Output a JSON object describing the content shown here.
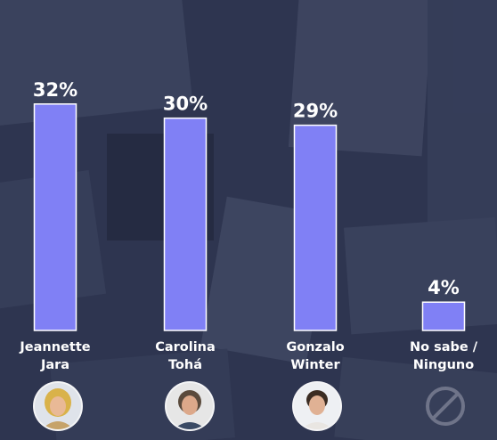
{
  "chart_data": {
    "type": "bar",
    "categories": [
      "Jeannette\nJara",
      "Carolina\nTohá",
      "Gonzalo\nWinter",
      "No sabe /\nNinguno"
    ],
    "values": [
      32,
      30,
      29,
      4
    ],
    "value_labels": [
      "32%",
      "30%",
      "29%",
      "4%"
    ],
    "unit": "%",
    "ylim": [
      0,
      36
    ],
    "grid": false,
    "legend": "none",
    "bar_color": "#8080f5",
    "background_color": "#2f3652",
    "label_color": "#ffffff"
  },
  "avatars": [
    {
      "icon": "candidate-photo"
    },
    {
      "icon": "candidate-photo"
    },
    {
      "icon": "candidate-photo"
    },
    {
      "icon": "prohibited-icon"
    }
  ]
}
